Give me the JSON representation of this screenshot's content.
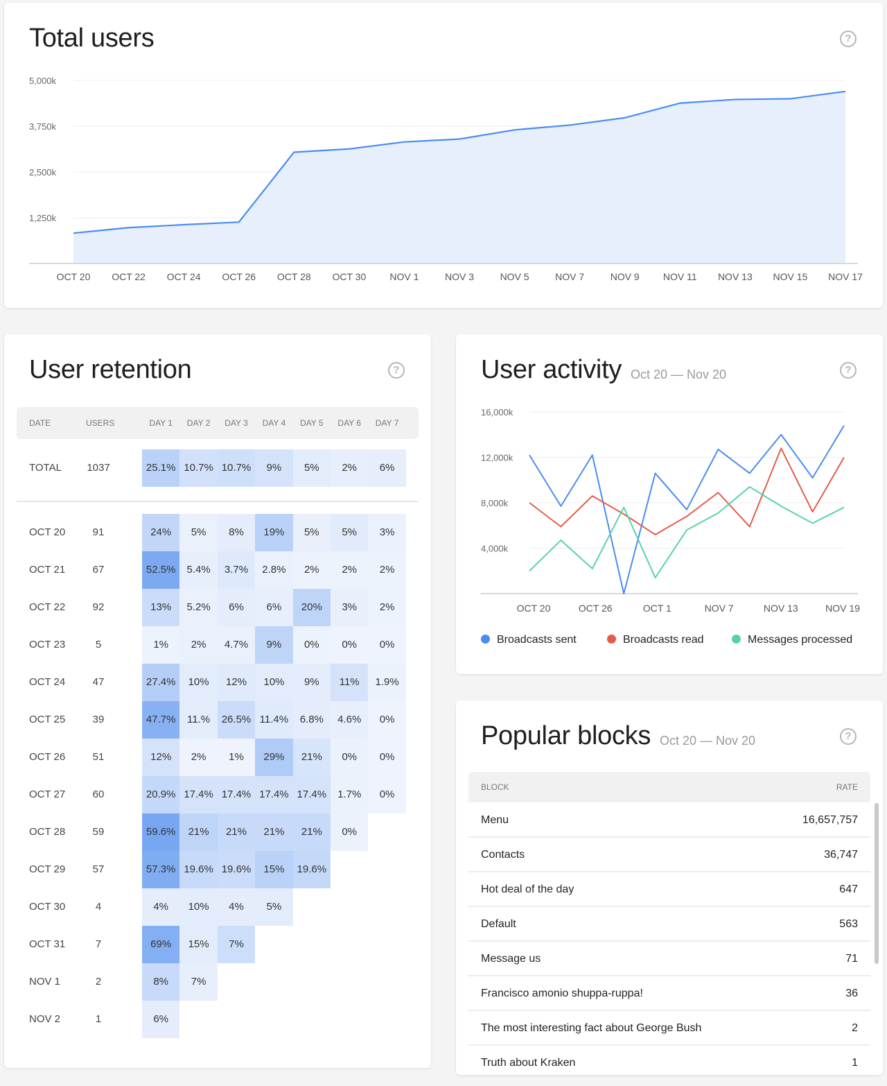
{
  "colors": {
    "blue": "#4a8cef",
    "red": "#e55d4a",
    "green": "#5ad1ad",
    "areaFill": "#e6effb"
  },
  "total_users": {
    "title": "Total users",
    "help_icon": "question-circle-icon",
    "chart_data": {
      "type": "area",
      "x_labels": [
        "OCT 20",
        "OCT 22",
        "OCT 24",
        "OCT 26",
        "OCT 28",
        "OCT 30",
        "NOV 1",
        "NOV 3",
        "NOV 5",
        "NOV 7",
        "NOV 9",
        "NOV 11",
        "NOV 13",
        "NOV 15",
        "NOV 17"
      ],
      "y_ticks": [
        "1,250k",
        "2,500k",
        "3,750k",
        "5,000k"
      ],
      "ylim": [
        0,
        5000
      ],
      "grid": true,
      "values": [
        830,
        980,
        1060,
        1130,
        3040,
        3130,
        3320,
        3400,
        3650,
        3780,
        3980,
        4380,
        4480,
        4500,
        4700
      ]
    }
  },
  "user_retention": {
    "title": "User retention",
    "help_icon": "question-circle-icon",
    "headers": [
      "DATE",
      "USERS",
      "DAY 1",
      "DAY 2",
      "DAY 3",
      "DAY 4",
      "DAY 5",
      "DAY 6",
      "DAY 7"
    ],
    "total": {
      "label": "TOTAL",
      "users": "1037",
      "cells": [
        "25.1%",
        "10.7%",
        "10.7%",
        "9%",
        "5%",
        "2%",
        "6%"
      ]
    },
    "rows": [
      {
        "date": "OCT 20",
        "users": "91",
        "cells": [
          "24%",
          "5%",
          "8%",
          "19%",
          "5%",
          "5%",
          "3%"
        ]
      },
      {
        "date": "OCT 21",
        "users": "67",
        "cells": [
          "52.5%",
          "5.4%",
          "3.7%",
          "2.8%",
          "2%",
          "2%",
          "2%"
        ]
      },
      {
        "date": "OCT 22",
        "users": "92",
        "cells": [
          "13%",
          "5.2%",
          "6%",
          "6%",
          "20%",
          "3%",
          "2%"
        ]
      },
      {
        "date": "OCT 23",
        "users": "5",
        "cells": [
          "1%",
          "2%",
          "4.7%",
          "9%",
          "0%",
          "0%",
          "0%"
        ]
      },
      {
        "date": "OCT 24",
        "users": "47",
        "cells": [
          "27.4%",
          "10%",
          "12%",
          "10%",
          "9%",
          "11%",
          "1.9%"
        ]
      },
      {
        "date": "OCT 25",
        "users": "39",
        "cells": [
          "47.7%",
          "11.%",
          "26.5%",
          "11.4%",
          "6.8%",
          "4.6%",
          "0%"
        ]
      },
      {
        "date": "OCT 26",
        "users": "51",
        "cells": [
          "12%",
          "2%",
          "1%",
          "29%",
          "21%",
          "0%",
          "0%"
        ]
      },
      {
        "date": "OCT 27",
        "users": "60",
        "cells": [
          "20.9%",
          "17.4%",
          "17.4%",
          "17.4%",
          "17.4%",
          "1.7%",
          "0%"
        ]
      },
      {
        "date": "OCT 28",
        "users": "59",
        "cells": [
          "59.6%",
          "21%",
          "21%",
          "21%",
          "21%",
          "0%"
        ]
      },
      {
        "date": "OCT 29",
        "users": "57",
        "cells": [
          "57.3%",
          "19.6%",
          "19.6%",
          "15%",
          "19.6%"
        ]
      },
      {
        "date": "OCT 30",
        "users": "4",
        "cells": [
          "4%",
          "10%",
          "4%",
          "5%"
        ]
      },
      {
        "date": "OCT 31",
        "users": "7",
        "cells": [
          "69%",
          "15%",
          "7%"
        ]
      },
      {
        "date": "NOV 1",
        "users": "2",
        "cells": [
          "8%",
          "7%"
        ]
      },
      {
        "date": "NOV 2",
        "users": "1",
        "cells": [
          "6%"
        ]
      }
    ],
    "chart_data": {
      "type": "heatmap",
      "columns": [
        "DAY 1",
        "DAY 2",
        "DAY 3",
        "DAY 4",
        "DAY 5",
        "DAY 6",
        "DAY 7"
      ],
      "rows": [
        "TOTAL",
        "OCT 20",
        "OCT 21",
        "OCT 22",
        "OCT 23",
        "OCT 24",
        "OCT 25",
        "OCT 26",
        "OCT 27",
        "OCT 28",
        "OCT 29",
        "OCT 30",
        "OCT 31",
        "NOV 1",
        "NOV 2"
      ],
      "intensity": [
        [
          0.42,
          0.25,
          0.27,
          0.22,
          0.12,
          0.08,
          0.09
        ],
        [
          0.36,
          0.06,
          0.1,
          0.42,
          0.07,
          0.13,
          0.06
        ],
        [
          0.88,
          0.08,
          0.15,
          0.06,
          0.04,
          0.04,
          0.04
        ],
        [
          0.3,
          0.06,
          0.1,
          0.08,
          0.38,
          0.07,
          0.04
        ],
        [
          0.04,
          0.06,
          0.06,
          0.38,
          0.04,
          0.03,
          0.03
        ],
        [
          0.46,
          0.12,
          0.14,
          0.12,
          0.1,
          0.22,
          0.05
        ],
        [
          0.8,
          0.12,
          0.3,
          0.14,
          0.1,
          0.08,
          0.03
        ],
        [
          0.22,
          0.03,
          0.03,
          0.5,
          0.2,
          0.05,
          0.03
        ],
        [
          0.34,
          0.22,
          0.22,
          0.22,
          0.22,
          0.05,
          0.03
        ],
        [
          0.92,
          0.38,
          0.32,
          0.32,
          0.32,
          0.05
        ],
        [
          0.85,
          0.32,
          0.3,
          0.42,
          0.34
        ],
        [
          0.1,
          0.12,
          0.1,
          0.12
        ],
        [
          0.82,
          0.12,
          0.28
        ],
        [
          0.32,
          0.08
        ],
        [
          0.1
        ]
      ]
    }
  },
  "user_activity": {
    "title": "User activity",
    "subtitle": "Oct 20 — Nov 20",
    "help_icon": "question-circle-icon",
    "chart_data": {
      "type": "line",
      "x_labels": [
        "OCT 20",
        "OCT 26",
        "OCT 1",
        "NOV 7",
        "NOV 13",
        "NOV 19"
      ],
      "y_ticks": [
        "4,000k",
        "8,000k",
        "12,000k",
        "16,000k"
      ],
      "ylim": [
        0,
        16000
      ],
      "grid": true,
      "legend_position": "bottom",
      "series": [
        {
          "name": "Broadcasts sent",
          "color": "#4a8cef",
          "values": [
            12200,
            7700,
            12200,
            0,
            10600,
            7400,
            12700,
            10600,
            14000,
            10200,
            14800
          ]
        },
        {
          "name": "Broadcasts read",
          "color": "#e55d4a",
          "values": [
            8000,
            5900,
            8600,
            7000,
            5200,
            6800,
            8900,
            5900,
            12800,
            7200,
            12000
          ]
        },
        {
          "name": "Messages processed",
          "color": "#5ad1ad",
          "values": [
            2000,
            4700,
            2200,
            7600,
            1400,
            5600,
            7100,
            9400,
            7700,
            6200,
            7600
          ]
        }
      ]
    }
  },
  "popular_blocks": {
    "title": "Popular blocks",
    "subtitle": "Oct 20 — Nov 20",
    "help_icon": "question-circle-icon",
    "headers": {
      "block": "BLOCK",
      "rate": "RATE"
    },
    "rows": [
      {
        "block": "Menu",
        "rate": "16,657,757"
      },
      {
        "block": "Contacts",
        "rate": "36,747"
      },
      {
        "block": "Hot deal of the day",
        "rate": "647"
      },
      {
        "block": "Default",
        "rate": "563"
      },
      {
        "block": "Message us",
        "rate": "71"
      },
      {
        "block": "Francisco amonio shuppa-ruppa!",
        "rate": "36"
      },
      {
        "block": "The most interesting fact about George Bush",
        "rate": "2"
      },
      {
        "block": "Truth about Kraken",
        "rate": "1"
      }
    ]
  }
}
